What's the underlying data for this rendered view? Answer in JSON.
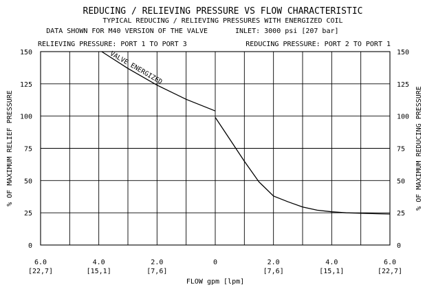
{
  "chart_data": {
    "type": "line",
    "title": "REDUCING / RELIEVING PRESSURE VS FLOW CHARACTERISTIC",
    "subtitles": [
      "TYPICAL REDUCING / RELIEVING PRESSURES WITH ENERGIZED COIL",
      "DATA SHOWN FOR M40 VERSION OF THE VALVE",
      "INLET: 3000 psi [207 bar]"
    ],
    "header_left": "RELIEVING PRESSURE: PORT 1 TO PORT 3",
    "header_right": "REDUCING PRESSURE: PORT 2 TO PORT 1",
    "xlabel": "FLOW gpm [lpm]",
    "ylabel_left": "% OF MAXIMUM RELIEF PRESSURE",
    "ylabel_right": "% OF MAXIMUM REDUCING PRESSURE",
    "annotation": "VALVE ENERGIZED",
    "xlim": [
      -6,
      6
    ],
    "ylim": [
      0,
      150
    ],
    "x_tick_values": [
      -6,
      -4,
      -2,
      0,
      2,
      4,
      6
    ],
    "x_tick_labels": [
      "6.0",
      "4.0",
      "2.0",
      "0",
      "2.0",
      "4.0",
      "6.0"
    ],
    "x_tick_sublabels": [
      "[22,7]",
      "[15,1]",
      "[7,6]",
      "",
      "[7,6]",
      "[15,1]",
      "[22,7]"
    ],
    "y_ticks": [
      0,
      25,
      50,
      75,
      100,
      125,
      150
    ],
    "grid": true,
    "series": [
      {
        "x": [
          -3.9,
          -3.0,
          -2.0,
          -1.0,
          0.0
        ],
        "y": [
          150,
          137,
          124,
          113,
          104
        ]
      },
      {
        "x": [
          0.0,
          0.5,
          1.0,
          1.5,
          2.0,
          2.5,
          3.0,
          3.5,
          4.0,
          4.5,
          5.0,
          5.5,
          6.0
        ],
        "y": [
          99,
          82,
          65,
          49,
          38,
          33.5,
          29.5,
          27,
          25.8,
          25,
          24.6,
          24.3,
          24
        ]
      }
    ]
  }
}
